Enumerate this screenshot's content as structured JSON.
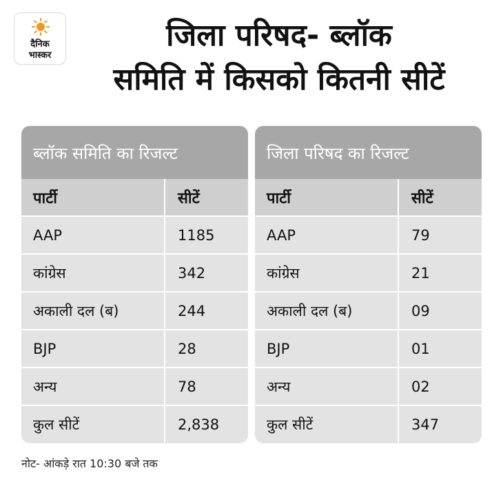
{
  "logo": {
    "line1": "दैनिक",
    "line2": "भास्कर",
    "icon": "sun-icon",
    "icon_color": "#f7941d"
  },
  "title": {
    "line1": "जिला परिषद- ब्लॉक",
    "line2": "समिति में किसको कितनी सीटें"
  },
  "colors": {
    "panel_header": "#a7a7a7",
    "panel_body": "#e3e3e3",
    "column_header": "#cfcfcf"
  },
  "block_samiti": {
    "heading": "ब्लॉक समिति का रिजल्ट",
    "col_party": "पार्टी",
    "col_seats": "सीटें",
    "rows": [
      {
        "party": "AAP",
        "seats": "1185"
      },
      {
        "party": "कांग्रेस",
        "seats": "342"
      },
      {
        "party": "अकाली दल (ब)",
        "seats": "244"
      },
      {
        "party": "BJP",
        "seats": "28"
      },
      {
        "party": "अन्य",
        "seats": "78"
      },
      {
        "party": "कुल सीटें",
        "seats": "2,838"
      }
    ]
  },
  "zila_parishad": {
    "heading": "जिला परिषद का रिजल्ट",
    "col_party": "पार्टी",
    "col_seats": "सीटें",
    "rows": [
      {
        "party": "AAP",
        "seats": "79"
      },
      {
        "party": "कांग्रेस",
        "seats": "21"
      },
      {
        "party": "अकाली दल (ब)",
        "seats": "09"
      },
      {
        "party": "BJP",
        "seats": "01"
      },
      {
        "party": "अन्य",
        "seats": "02"
      },
      {
        "party": "कुल सीटें",
        "seats": "347"
      }
    ]
  },
  "note": "नोट- आंकड़े रात 10:30 बजे तक"
}
